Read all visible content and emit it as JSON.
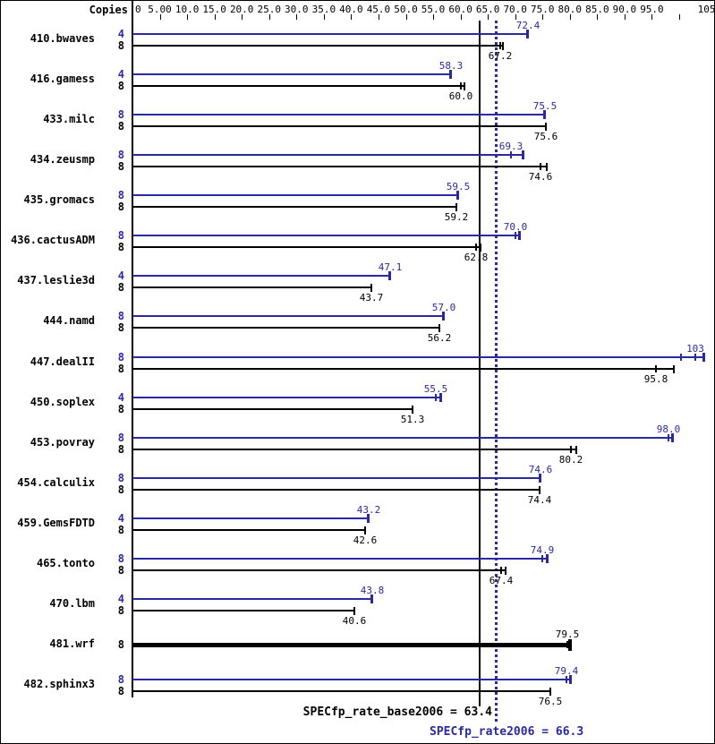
{
  "header": {
    "copies_label": "Copies"
  },
  "chart_data": {
    "type": "bar",
    "orientation": "horizontal",
    "title": "",
    "xlabel": "",
    "ylabel": "",
    "xlim": [
      0,
      105
    ],
    "grid": false,
    "legend_position": "none",
    "colors": {
      "peak": "#2a2aa0",
      "base": "#000000"
    },
    "axis_ticks": [
      {
        "label": "0",
        "value": 0,
        "mark": false
      },
      {
        "label": "5.00",
        "value": 5,
        "mark": true
      },
      {
        "label": "10.0",
        "value": 10,
        "mark": true
      },
      {
        "label": "15.0",
        "value": 15,
        "mark": true
      },
      {
        "label": "20.0",
        "value": 20,
        "mark": true
      },
      {
        "label": "25.0",
        "value": 25,
        "mark": true
      },
      {
        "label": "30.0",
        "value": 30,
        "mark": true
      },
      {
        "label": "35.0",
        "value": 35,
        "mark": true
      },
      {
        "label": "40.0",
        "value": 40,
        "mark": true
      },
      {
        "label": "45.0",
        "value": 45,
        "mark": true
      },
      {
        "label": "50.0",
        "value": 50,
        "mark": true
      },
      {
        "label": "55.0",
        "value": 55,
        "mark": true
      },
      {
        "label": "60.0",
        "value": 60,
        "mark": true
      },
      {
        "label": "65.0",
        "value": 65,
        "mark": true
      },
      {
        "label": "70.0",
        "value": 70,
        "mark": true
      },
      {
        "label": "75.0",
        "value": 75,
        "mark": true
      },
      {
        "label": "80.0",
        "value": 80,
        "mark": true
      },
      {
        "label": "85.0",
        "value": 85,
        "mark": true
      },
      {
        "label": "90.0",
        "value": 90,
        "mark": true
      },
      {
        "label": "95.0",
        "value": 95,
        "mark": true
      },
      {
        "label": "",
        "value": 100,
        "mark": true
      },
      {
        "label": "105",
        "value": 105,
        "mark": false
      }
    ],
    "benchmarks": [
      {
        "name": "410.bwaves",
        "bars": [
          {
            "series": "peak",
            "copies": "4",
            "value": 72.4,
            "label": "72.4"
          },
          {
            "series": "base",
            "copies": "8",
            "value": 67.2,
            "label": "67.2",
            "max": 67.8
          }
        ]
      },
      {
        "name": "416.gamess",
        "bars": [
          {
            "series": "peak",
            "copies": "4",
            "value": 58.3,
            "label": "58.3"
          },
          {
            "series": "base",
            "copies": "8",
            "value": 60.0,
            "label": "60.0",
            "max": 60.8
          }
        ]
      },
      {
        "name": "433.milc",
        "bars": [
          {
            "series": "peak",
            "copies": "8",
            "value": 75.5,
            "label": "75.5"
          },
          {
            "series": "base",
            "copies": "8",
            "value": 75.6,
            "label": "75.6"
          }
        ]
      },
      {
        "name": "434.zeusmp",
        "bars": [
          {
            "series": "peak",
            "copies": "8",
            "value": 69.3,
            "label": "69.3",
            "max": 71.5
          },
          {
            "series": "base",
            "copies": "8",
            "value": 74.6,
            "label": "74.6",
            "max": 75.7
          }
        ]
      },
      {
        "name": "435.gromacs",
        "bars": [
          {
            "series": "peak",
            "copies": "8",
            "value": 59.5,
            "label": "59.5"
          },
          {
            "series": "base",
            "copies": "8",
            "value": 59.2,
            "label": "59.2"
          }
        ]
      },
      {
        "name": "436.cactusADM",
        "bars": [
          {
            "series": "peak",
            "copies": "8",
            "value": 70.0,
            "label": "70.0",
            "max": 70.8
          },
          {
            "series": "base",
            "copies": "8",
            "value": 62.8,
            "label": "62.8",
            "max": 63.6
          }
        ]
      },
      {
        "name": "437.leslie3d",
        "bars": [
          {
            "series": "peak",
            "copies": "4",
            "value": 47.1,
            "label": "47.1"
          },
          {
            "series": "base",
            "copies": "8",
            "value": 43.7,
            "label": "43.7"
          }
        ]
      },
      {
        "name": "444.namd",
        "bars": [
          {
            "series": "peak",
            "copies": "8",
            "value": 57.0,
            "label": "57.0"
          },
          {
            "series": "base",
            "copies": "8",
            "value": 56.2,
            "label": "56.2"
          }
        ]
      },
      {
        "name": "447.dealII",
        "bars": [
          {
            "series": "peak",
            "copies": "8",
            "value": 103,
            "label": "103",
            "min": 100.4,
            "max": 104.6
          },
          {
            "series": "base",
            "copies": "8",
            "value": 95.8,
            "label": "95.8",
            "max": 99.0
          }
        ]
      },
      {
        "name": "450.soplex",
        "bars": [
          {
            "series": "peak",
            "copies": "4",
            "value": 55.5,
            "label": "55.5",
            "max": 56.5
          },
          {
            "series": "base",
            "copies": "8",
            "value": 51.3,
            "label": "51.3"
          }
        ]
      },
      {
        "name": "453.povray",
        "bars": [
          {
            "series": "peak",
            "copies": "8",
            "value": 98.0,
            "label": "98.0",
            "max": 98.8
          },
          {
            "series": "base",
            "copies": "8",
            "value": 80.2,
            "label": "80.2",
            "max": 81.2
          }
        ]
      },
      {
        "name": "454.calculix",
        "bars": [
          {
            "series": "peak",
            "copies": "8",
            "value": 74.6,
            "label": "74.6"
          },
          {
            "series": "base",
            "copies": "8",
            "value": 74.4,
            "label": "74.4"
          }
        ]
      },
      {
        "name": "459.GemsFDTD",
        "bars": [
          {
            "series": "peak",
            "copies": "4",
            "value": 43.2,
            "label": "43.2"
          },
          {
            "series": "base",
            "copies": "8",
            "value": 42.6,
            "label": "42.6"
          }
        ]
      },
      {
        "name": "465.tonto",
        "bars": [
          {
            "series": "peak",
            "copies": "8",
            "value": 74.9,
            "label": "74.9",
            "max": 75.9
          },
          {
            "series": "base",
            "copies": "8",
            "value": 67.4,
            "label": "67.4",
            "max": 68.2
          }
        ]
      },
      {
        "name": "470.lbm",
        "bars": [
          {
            "series": "peak",
            "copies": "4",
            "value": 43.8,
            "label": "43.8"
          },
          {
            "series": "base",
            "copies": "8",
            "value": 40.6,
            "label": "40.6"
          }
        ]
      },
      {
        "name": "481.wrf",
        "bars": [
          {
            "series": "base",
            "copies": "8",
            "value": 79.5,
            "label": "79.5",
            "max": 80.2,
            "single": true,
            "bold": true,
            "label_above": true
          }
        ]
      },
      {
        "name": "482.sphinx3",
        "bars": [
          {
            "series": "peak",
            "copies": "8",
            "value": 79.4,
            "label": "79.4",
            "max": 80.2
          },
          {
            "series": "base",
            "copies": "8",
            "value": 76.5,
            "label": "76.5"
          }
        ]
      }
    ],
    "averages": {
      "base": {
        "label": "SPECfp_rate_base2006 = 63.4",
        "value": 63.4
      },
      "peak": {
        "label": "SPECfp_rate2006 = 66.3",
        "value": 66.3
      }
    }
  }
}
